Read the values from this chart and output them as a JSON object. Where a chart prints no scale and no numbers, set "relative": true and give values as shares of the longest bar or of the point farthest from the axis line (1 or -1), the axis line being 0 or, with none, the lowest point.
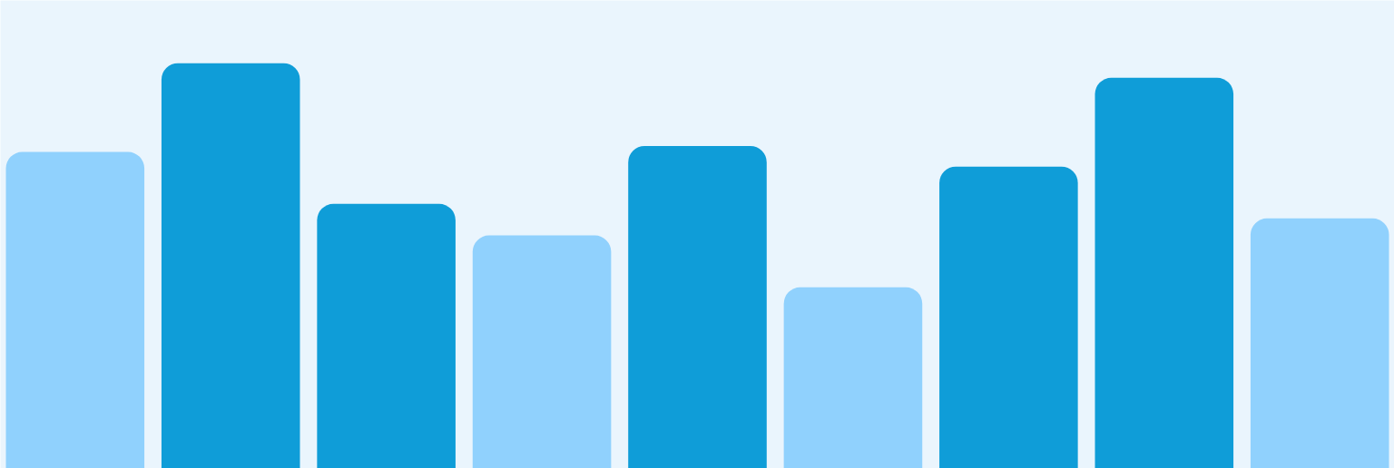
{
  "chart_data": {
    "type": "bar",
    "relative": true,
    "categories": [
      null,
      null,
      null,
      null,
      null,
      null,
      null,
      null,
      null
    ],
    "values": [
      0.781,
      1,
      0.653,
      0.575,
      0.796,
      0.447,
      0.745,
      0.964,
      0.617
    ],
    "colors": [
      "#90d1fd",
      "#0f9dd8",
      "#0f9dd8",
      "#90d1fd",
      "#0f9dd8",
      "#90d1fd",
      "#0f9dd8",
      "#0f9dd8",
      "#90d1fd"
    ],
    "grid": false
  }
}
